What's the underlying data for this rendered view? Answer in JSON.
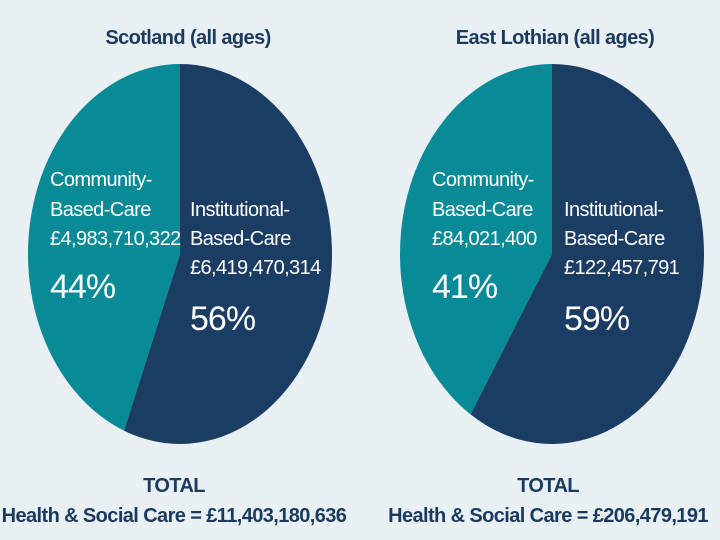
{
  "colors": {
    "community": "#088a97",
    "institutional": "#1b3d63",
    "background": "#e8f0f3",
    "text": "#1b3a5e"
  },
  "chart_data": [
    {
      "type": "pie",
      "title": "Scotland (all ages)",
      "slices": [
        {
          "key": "community",
          "label_lines": [
            "Community-",
            "Based-Care"
          ],
          "amount": "£4,983,710,322",
          "value": 44,
          "percent_label": "44%"
        },
        {
          "key": "institutional",
          "label_lines": [
            "Institutional-",
            "Based-Care"
          ],
          "amount": "£6,419,470,314",
          "value": 56,
          "percent_label": "56%"
        }
      ],
      "total_label": "TOTAL",
      "total_text": "Health & Social Care = £11,403,180,636"
    },
    {
      "type": "pie",
      "title": "East Lothian (all ages)",
      "slices": [
        {
          "key": "community",
          "label_lines": [
            "Community-",
            "Based-Care"
          ],
          "amount": "£84,021,400",
          "value": 41,
          "percent_label": "41%"
        },
        {
          "key": "institutional",
          "label_lines": [
            "Institutional-",
            "Based-Care"
          ],
          "amount": "£122,457,791",
          "value": 59,
          "percent_label": "59%"
        }
      ],
      "total_label": "TOTAL",
      "total_text": "Health & Social Care = £206,479,191"
    }
  ]
}
